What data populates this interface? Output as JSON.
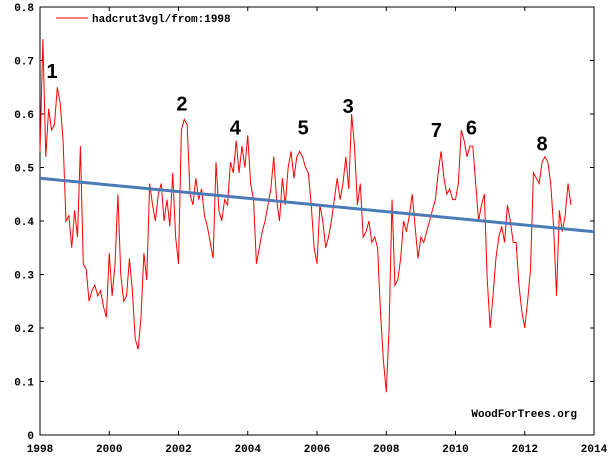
{
  "chart_data": {
    "type": "line",
    "xlim": [
      1998,
      2014
    ],
    "ylim": [
      0,
      0.8
    ],
    "xticks": [
      1998,
      2000,
      2002,
      2004,
      2006,
      2008,
      2010,
      2012,
      2014
    ],
    "yticks": [
      0,
      0.1,
      0.2,
      0.3,
      0.4,
      0.5,
      0.6,
      0.7,
      0.8
    ],
    "legend": "top-left",
    "watermark": "WoodForTrees.org",
    "series": [
      {
        "name": "hadcrut3vgl/from:1998",
        "color": "#ff0000",
        "x": [
          1998,
          1998.083,
          1998.167,
          1998.25,
          1998.333,
          1998.417,
          1998.5,
          1998.583,
          1998.667,
          1998.75,
          1998.833,
          1998.917,
          1999,
          1999.083,
          1999.167,
          1999.25,
          1999.333,
          1999.417,
          1999.5,
          1999.583,
          1999.667,
          1999.75,
          1999.833,
          1999.917,
          2000,
          2000.083,
          2000.167,
          2000.25,
          2000.333,
          2000.417,
          2000.5,
          2000.583,
          2000.667,
          2000.75,
          2000.833,
          2000.917,
          2001,
          2001.083,
          2001.167,
          2001.25,
          2001.333,
          2001.417,
          2001.5,
          2001.583,
          2001.667,
          2001.75,
          2001.833,
          2001.917,
          2002,
          2002.083,
          2002.167,
          2002.25,
          2002.333,
          2002.417,
          2002.5,
          2002.583,
          2002.667,
          2002.75,
          2002.833,
          2002.917,
          2003,
          2003.083,
          2003.167,
          2003.25,
          2003.333,
          2003.417,
          2003.5,
          2003.583,
          2003.667,
          2003.75,
          2003.833,
          2003.917,
          2004,
          2004.083,
          2004.167,
          2004.25,
          2004.333,
          2004.417,
          2004.5,
          2004.583,
          2004.667,
          2004.75,
          2004.833,
          2004.917,
          2005,
          2005.083,
          2005.167,
          2005.25,
          2005.333,
          2005.417,
          2005.5,
          2005.583,
          2005.667,
          2005.75,
          2005.833,
          2005.917,
          2006,
          2006.083,
          2006.167,
          2006.25,
          2006.333,
          2006.417,
          2006.5,
          2006.583,
          2006.667,
          2006.75,
          2006.833,
          2006.917,
          2007,
          2007.083,
          2007.167,
          2007.25,
          2007.333,
          2007.417,
          2007.5,
          2007.583,
          2007.667,
          2007.75,
          2007.833,
          2007.917,
          2008,
          2008.083,
          2008.167,
          2008.25,
          2008.333,
          2008.417,
          2008.5,
          2008.583,
          2008.667,
          2008.75,
          2008.833,
          2008.917,
          2009,
          2009.083,
          2009.167,
          2009.25,
          2009.333,
          2009.417,
          2009.5,
          2009.583,
          2009.667,
          2009.75,
          2009.833,
          2009.917,
          2010,
          2010.083,
          2010.167,
          2010.25,
          2010.333,
          2010.417,
          2010.5,
          2010.583,
          2010.667,
          2010.75,
          2010.833,
          2010.917,
          2011,
          2011.083,
          2011.167,
          2011.25,
          2011.333,
          2011.417,
          2011.5,
          2011.583,
          2011.667,
          2011.75,
          2011.833,
          2011.917,
          2012,
          2012.083,
          2012.167,
          2012.25,
          2012.333,
          2012.417,
          2012.5,
          2012.583,
          2012.667,
          2012.75,
          2012.833,
          2012.917,
          2013,
          2013.083,
          2013.167,
          2013.25,
          2013.333
        ],
        "values": [
          0.53,
          0.74,
          0.52,
          0.61,
          0.57,
          0.58,
          0.65,
          0.62,
          0.55,
          0.4,
          0.41,
          0.35,
          0.42,
          0.37,
          0.54,
          0.32,
          0.31,
          0.25,
          0.27,
          0.28,
          0.26,
          0.27,
          0.24,
          0.22,
          0.34,
          0.26,
          0.32,
          0.45,
          0.3,
          0.25,
          0.26,
          0.33,
          0.27,
          0.18,
          0.16,
          0.22,
          0.34,
          0.29,
          0.47,
          0.43,
          0.4,
          0.45,
          0.47,
          0.4,
          0.44,
          0.39,
          0.49,
          0.37,
          0.32,
          0.57,
          0.59,
          0.58,
          0.45,
          0.43,
          0.48,
          0.44,
          0.46,
          0.41,
          0.39,
          0.36,
          0.33,
          0.51,
          0.42,
          0.4,
          0.44,
          0.43,
          0.51,
          0.49,
          0.55,
          0.49,
          0.54,
          0.5,
          0.56,
          0.47,
          0.44,
          0.32,
          0.35,
          0.38,
          0.4,
          0.43,
          0.46,
          0.52,
          0.44,
          0.4,
          0.48,
          0.43,
          0.5,
          0.53,
          0.48,
          0.52,
          0.53,
          0.52,
          0.5,
          0.49,
          0.43,
          0.35,
          0.32,
          0.43,
          0.4,
          0.35,
          0.37,
          0.4,
          0.44,
          0.48,
          0.44,
          0.47,
          0.52,
          0.46,
          0.6,
          0.54,
          0.43,
          0.47,
          0.37,
          0.38,
          0.4,
          0.36,
          0.37,
          0.35,
          0.23,
          0.14,
          0.08,
          0.2,
          0.44,
          0.28,
          0.29,
          0.33,
          0.4,
          0.38,
          0.41,
          0.45,
          0.39,
          0.33,
          0.37,
          0.36,
          0.38,
          0.4,
          0.42,
          0.44,
          0.49,
          0.53,
          0.48,
          0.45,
          0.46,
          0.44,
          0.44,
          0.47,
          0.57,
          0.55,
          0.52,
          0.54,
          0.54,
          0.47,
          0.4,
          0.43,
          0.45,
          0.29,
          0.2,
          0.26,
          0.33,
          0.37,
          0.39,
          0.36,
          0.43,
          0.4,
          0.36,
          0.36,
          0.28,
          0.23,
          0.2,
          0.25,
          0.31,
          0.49,
          0.48,
          0.47,
          0.51,
          0.52,
          0.51,
          0.47,
          0.39,
          0.26,
          0.42,
          0.38,
          0.41,
          0.47,
          0.43
        ]
      },
      {
        "color": "#4a7ab8",
        "x": [
          1998,
          2014
        ],
        "values": [
          0.48,
          0.38
        ]
      }
    ],
    "annotations": [
      {
        "text": "1",
        "x": 1998.35,
        "y": 0.68
      },
      {
        "text": "2",
        "x": 2002.1,
        "y": 0.62
      },
      {
        "text": "4",
        "x": 2003.64,
        "y": 0.575
      },
      {
        "text": "5",
        "x": 2005.6,
        "y": 0.575
      },
      {
        "text": "3",
        "x": 2006.9,
        "y": 0.615
      },
      {
        "text": "7",
        "x": 2009.45,
        "y": 0.57
      },
      {
        "text": "6",
        "x": 2010.46,
        "y": 0.575
      },
      {
        "text": "8",
        "x": 2012.5,
        "y": 0.545
      }
    ]
  }
}
